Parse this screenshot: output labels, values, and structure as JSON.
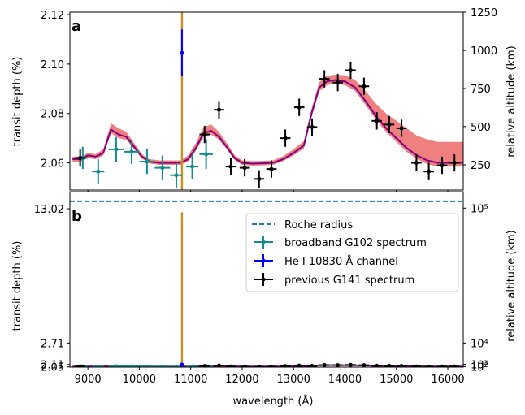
{
  "chart_data": [
    {
      "panel_label": "a",
      "type": "line",
      "xlim": [
        8650,
        16300
      ],
      "ylim": [
        2.049,
        2.121
      ],
      "yticks": [
        2.06,
        2.08,
        2.1,
        2.12
      ],
      "ylabel": "transit depth (%)",
      "y2label": "relative altitude (km)",
      "y2ticks": [
        {
          "label": "250",
          "y": 2.0592
        },
        {
          "label": "500",
          "y": 2.0747
        },
        {
          "label": "750",
          "y": 2.0901
        },
        {
          "label": "1000",
          "y": 2.1055
        },
        {
          "label": "1250",
          "y": 2.121
        }
      ]
    },
    {
      "panel_label": "b",
      "type": "line",
      "xlim": [
        8650,
        16300
      ],
      "ylim": [
        2.045,
        15.9
      ],
      "yscale": "log",
      "yticks": [
        2.05,
        2.11,
        2.71,
        13.02
      ],
      "ylabel": "transit depth (%)",
      "y2label": "relative altitude (km)",
      "y2ticks": [
        {
          "label": "10²",
          "y": 2.0565
        },
        {
          "label": "10³",
          "y": 2.112
        },
        {
          "label": "10⁴",
          "y": 2.7108
        },
        {
          "label": "10⁵",
          "y": 13.11
        }
      ],
      "roche_radius": 14.2
    }
  ],
  "shared": {
    "xlabel": "wavelength (Å)",
    "xticks": [
      9000,
      10000,
      11000,
      12000,
      13000,
      14000,
      15000,
      16000
    ],
    "colors": {
      "model_line": "#800080",
      "model_band": "#f08080",
      "g102": "#138d90",
      "he": "#0000ff",
      "g141": "#000000",
      "vline": "#c8922a",
      "roche": "#1f77b4"
    },
    "he_vline": {
      "x": 10830,
      "ymin": 2.03,
      "ymax": 12.5
    },
    "model": {
      "x": [
        8700,
        8850,
        9000,
        9150,
        9300,
        9450,
        9600,
        9750,
        9900,
        10050,
        10200,
        10400,
        10600,
        10800,
        10950,
        11100,
        11250,
        11400,
        11550,
        11700,
        11850,
        12000,
        12200,
        12400,
        12600,
        12800,
        13000,
        13200,
        13350,
        13500,
        13650,
        13800,
        14000,
        14200,
        14400,
        14600,
        14800,
        15000,
        15200,
        15400,
        15600,
        15800,
        16000,
        16300
      ],
      "y": [
        2.0615,
        2.0615,
        2.063,
        2.0625,
        2.064,
        2.0735,
        2.0715,
        2.0705,
        2.0665,
        2.0625,
        2.0605,
        2.06,
        2.06,
        2.06,
        2.0615,
        2.066,
        2.072,
        2.073,
        2.0705,
        2.0665,
        2.062,
        2.06,
        2.0597,
        2.0598,
        2.06,
        2.0615,
        2.064,
        2.067,
        2.08,
        2.0905,
        2.093,
        2.0935,
        2.093,
        2.0905,
        2.085,
        2.079,
        2.074,
        2.07,
        2.066,
        2.063,
        2.061,
        2.06,
        2.06,
        2.06
      ],
      "band_up": [
        0.001,
        0.001,
        0.001,
        0.001,
        0.0015,
        0.0025,
        0.0025,
        0.002,
        0.0015,
        0.001,
        0.001,
        0.001,
        0.001,
        0.001,
        0.0015,
        0.002,
        0.0025,
        0.0025,
        0.002,
        0.0015,
        0.0012,
        0.001,
        0.001,
        0.001,
        0.001,
        0.0012,
        0.0015,
        0.0018,
        0.002,
        0.0022,
        0.0022,
        0.0022,
        0.0025,
        0.003,
        0.004,
        0.005,
        0.006,
        0.007,
        0.008,
        0.008,
        0.0085,
        0.0085,
        0.0085,
        0.0085
      ],
      "band_dn": [
        0.001,
        0.001,
        0.001,
        0.001,
        0.001,
        0.0015,
        0.0015,
        0.0012,
        0.001,
        0.0008,
        0.0008,
        0.0008,
        0.0008,
        0.0008,
        0.001,
        0.0012,
        0.0015,
        0.0015,
        0.0012,
        0.001,
        0.0008,
        0.0008,
        0.0008,
        0.0008,
        0.0008,
        0.0008,
        0.001,
        0.0012,
        0.0015,
        0.0015,
        0.0015,
        0.0015,
        0.0015,
        0.0015,
        0.0015,
        0.0015,
        0.0015,
        0.0015,
        0.0015,
        0.0015,
        0.0015,
        0.0015,
        0.0015,
        0.0015
      ]
    },
    "g102": [
      {
        "x": 8900,
        "y": 2.062,
        "xerr": 100,
        "yerr": 0.0045
      },
      {
        "x": 9200,
        "y": 2.0565,
        "xerr": 120,
        "yerr": 0.005
      },
      {
        "x": 9550,
        "y": 2.0655,
        "xerr": 150,
        "yerr": 0.005
      },
      {
        "x": 9850,
        "y": 2.0645,
        "xerr": 150,
        "yerr": 0.005
      },
      {
        "x": 10150,
        "y": 2.0605,
        "xerr": 150,
        "yerr": 0.005
      },
      {
        "x": 10450,
        "y": 2.058,
        "xerr": 150,
        "yerr": 0.005
      },
      {
        "x": 10720,
        "y": 2.055,
        "xerr": 120,
        "yerr": 0.005
      },
      {
        "x": 11030,
        "y": 2.0585,
        "xerr": 120,
        "yerr": 0.005
      },
      {
        "x": 11300,
        "y": 2.0635,
        "xerr": 130,
        "yerr": 0.006
      }
    ],
    "he": {
      "x": 10830,
      "y": 2.1045,
      "xerr": 20,
      "yerr": 0.0095
    },
    "g141": [
      {
        "x": 8850,
        "y": 2.062,
        "xerr": 100,
        "yerr": 0.0035
      },
      {
        "x": 11270,
        "y": 2.0715,
        "xerr": 100,
        "yerr": 0.0035
      },
      {
        "x": 11550,
        "y": 2.0815,
        "xerr": 100,
        "yerr": 0.0035
      },
      {
        "x": 11780,
        "y": 2.0585,
        "xerr": 100,
        "yerr": 0.0035
      },
      {
        "x": 12050,
        "y": 2.058,
        "xerr": 100,
        "yerr": 0.0035
      },
      {
        "x": 12330,
        "y": 2.0535,
        "xerr": 100,
        "yerr": 0.0035
      },
      {
        "x": 12570,
        "y": 2.0575,
        "xerr": 100,
        "yerr": 0.0035
      },
      {
        "x": 12840,
        "y": 2.07,
        "xerr": 100,
        "yerr": 0.0035
      },
      {
        "x": 13110,
        "y": 2.0825,
        "xerr": 100,
        "yerr": 0.0035
      },
      {
        "x": 13360,
        "y": 2.0745,
        "xerr": 100,
        "yerr": 0.0035
      },
      {
        "x": 13600,
        "y": 2.094,
        "xerr": 100,
        "yerr": 0.0035
      },
      {
        "x": 13860,
        "y": 2.0925,
        "xerr": 100,
        "yerr": 0.0035
      },
      {
        "x": 14110,
        "y": 2.0975,
        "xerr": 100,
        "yerr": 0.0035
      },
      {
        "x": 14370,
        "y": 2.091,
        "xerr": 100,
        "yerr": 0.0035
      },
      {
        "x": 14620,
        "y": 2.077,
        "xerr": 100,
        "yerr": 0.0035
      },
      {
        "x": 14860,
        "y": 2.0755,
        "xerr": 100,
        "yerr": 0.0035
      },
      {
        "x": 15100,
        "y": 2.074,
        "xerr": 100,
        "yerr": 0.0035
      },
      {
        "x": 15390,
        "y": 2.06,
        "xerr": 100,
        "yerr": 0.0035
      },
      {
        "x": 15630,
        "y": 2.0565,
        "xerr": 100,
        "yerr": 0.0035
      },
      {
        "x": 15890,
        "y": 2.059,
        "xerr": 100,
        "yerr": 0.0035
      },
      {
        "x": 16130,
        "y": 2.06,
        "xerr": 100,
        "yerr": 0.0035
      }
    ],
    "legend": {
      "roche": "Roche radius",
      "g102": "broadband G102 spectrum",
      "he": "He I 10830 Å channel",
      "g141": "previous G141 spectrum"
    }
  }
}
